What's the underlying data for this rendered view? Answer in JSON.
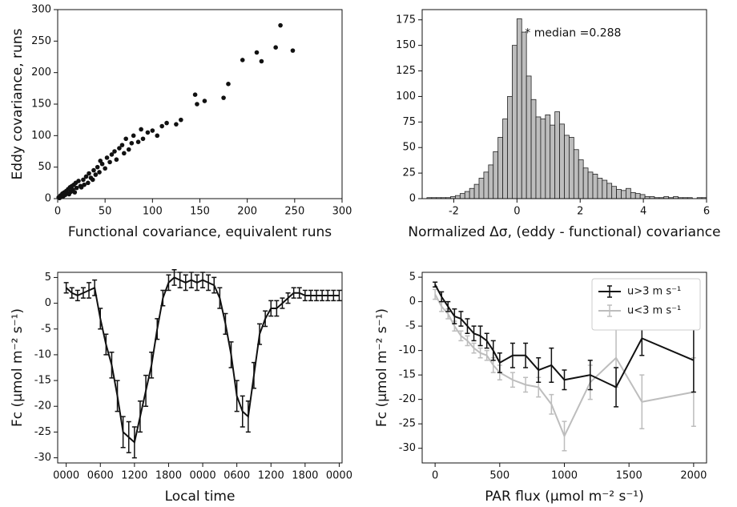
{
  "chart_data": [
    {
      "type": "scatter",
      "xlabel": "Functional covariance, equivalent runs",
      "ylabel": "Eddy covariance, runs",
      "color": "#111111",
      "x": [
        1,
        2,
        3,
        4,
        5,
        6,
        7,
        8,
        9,
        10,
        11,
        12,
        13,
        14,
        15,
        16,
        17,
        18,
        19,
        20,
        22,
        24,
        25,
        27,
        28,
        30,
        32,
        33,
        35,
        37,
        38,
        40,
        42,
        44,
        45,
        47,
        50,
        52,
        55,
        57,
        60,
        62,
        65,
        68,
        70,
        72,
        75,
        78,
        80,
        85,
        88,
        90,
        95,
        100,
        105,
        110,
        115,
        125,
        130,
        145,
        147,
        155,
        175,
        180,
        195,
        210,
        215,
        230,
        235,
        248
      ],
      "values": [
        2,
        1,
        5,
        3,
        8,
        4,
        10,
        6,
        12,
        9,
        15,
        7,
        18,
        11,
        20,
        14,
        22,
        10,
        25,
        17,
        28,
        20,
        18,
        30,
        22,
        35,
        25,
        40,
        33,
        30,
        45,
        38,
        50,
        42,
        60,
        55,
        48,
        65,
        58,
        70,
        75,
        62,
        80,
        85,
        72,
        95,
        78,
        88,
        100,
        90,
        110,
        95,
        105,
        108,
        100,
        115,
        120,
        118,
        125,
        165,
        150,
        155,
        160,
        182,
        220,
        232,
        218,
        240,
        275,
        235
      ],
      "xlim": [
        0,
        300
      ],
      "xticks": [
        0,
        50,
        100,
        150,
        200,
        250,
        300
      ],
      "ylim": [
        0,
        300
      ],
      "yticks": [
        0,
        50,
        100,
        150,
        200,
        250,
        300
      ]
    },
    {
      "type": "histogram",
      "xlabel": "Normalized Δσ,  (eddy - functional) covariance",
      "annotation": "* median =0.288",
      "color": "#bdbdbd",
      "bins": [
        -2.85,
        -2.7,
        -2.55,
        -2.4,
        -2.25,
        -2.1,
        -1.95,
        -1.8,
        -1.65,
        -1.5,
        -1.35,
        -1.2,
        -1.05,
        -0.9,
        -0.75,
        -0.6,
        -0.45,
        -0.3,
        -0.15,
        0,
        0.15,
        0.3,
        0.45,
        0.6,
        0.75,
        0.9,
        1.05,
        1.2,
        1.35,
        1.5,
        1.65,
        1.8,
        1.95,
        2.1,
        2.25,
        2.4,
        2.55,
        2.7,
        2.85,
        3,
        3.15,
        3.3,
        3.45,
        3.6,
        3.75,
        3.9,
        4.05,
        4.2,
        4.35,
        4.5,
        4.65,
        4.8,
        4.95,
        5.1,
        5.25,
        5.4,
        5.55,
        5.7,
        5.85,
        6
      ],
      "values": [
        1,
        1,
        1,
        1,
        1,
        2,
        3,
        5,
        7,
        10,
        14,
        20,
        26,
        33,
        46,
        60,
        78,
        100,
        150,
        176,
        163,
        120,
        97,
        80,
        78,
        82,
        72,
        85,
        73,
        62,
        60,
        48,
        38,
        30,
        26,
        24,
        20,
        18,
        15,
        12,
        9,
        8,
        10,
        6,
        5,
        4,
        2,
        2,
        1,
        1,
        2,
        1,
        2,
        1,
        1,
        1,
        0,
        1,
        1
      ],
      "xlim": [
        -3,
        6
      ],
      "xticks": [
        -2,
        0,
        2,
        4,
        6
      ],
      "ylim": [
        0,
        185
      ],
      "yticks": [
        0,
        25,
        50,
        75,
        100,
        125,
        150,
        175
      ]
    },
    {
      "type": "line",
      "xlabel": "Local time",
      "ylabel": "Fc (μmol m⁻² s⁻¹)",
      "color": "#111111",
      "x": [
        0,
        1,
        2,
        3,
        4,
        5,
        6,
        7,
        8,
        9,
        10,
        11,
        12,
        13,
        14,
        15,
        16,
        17,
        18,
        19,
        20,
        21,
        22,
        23,
        24,
        25,
        26,
        27,
        28,
        29,
        30,
        31,
        32,
        33,
        34,
        35,
        36,
        37,
        38,
        39,
        40,
        41,
        42,
        43,
        44,
        45,
        46,
        47,
        48
      ],
      "values": [
        3,
        2,
        1.5,
        2,
        2.5,
        3,
        -3,
        -8,
        -12,
        -18,
        -25,
        -26,
        -27,
        -22,
        -17,
        -12,
        -5,
        1,
        4,
        5,
        4.5,
        4,
        4.5,
        4,
        4.5,
        4,
        3.5,
        1,
        -4,
        -10,
        -18,
        -21,
        -22,
        -14,
        -6,
        -3,
        -1,
        -1,
        0,
        1,
        2,
        2,
        1.5,
        1.5,
        1.5,
        1.5,
        1.5,
        1.5,
        1.5
      ],
      "errors": [
        1,
        1,
        1,
        1,
        1.5,
        1.5,
        2,
        2,
        2.5,
        3,
        3,
        3,
        3,
        3,
        3,
        2.5,
        2,
        1.5,
        1.5,
        1.5,
        1.5,
        1.5,
        1.5,
        1.5,
        1.5,
        1.5,
        1.5,
        2,
        2,
        2.5,
        3,
        3,
        3,
        2.5,
        2,
        1.5,
        1.5,
        1.5,
        1,
        1,
        1,
        1,
        1,
        1,
        1,
        1,
        1,
        1,
        1
      ],
      "xlim": [
        -1.5,
        48.5
      ],
      "xticks": [
        {
          "value": 0,
          "label": "0000"
        },
        {
          "value": 6,
          "label": "0600"
        },
        {
          "value": 12,
          "label": "1200"
        },
        {
          "value": 18,
          "label": "1800"
        },
        {
          "value": 24,
          "label": "0000"
        },
        {
          "value": 30,
          "label": "0600"
        },
        {
          "value": 36,
          "label": "1200"
        },
        {
          "value": 42,
          "label": "1800"
        },
        {
          "value": 48,
          "label": "0000"
        }
      ],
      "ylim": [
        -31,
        6
      ],
      "yticks": [
        -30,
        -25,
        -20,
        -15,
        -10,
        -5,
        0,
        5
      ]
    },
    {
      "type": "line",
      "xlabel": "PAR flux (μmol m⁻² s⁻¹)",
      "ylabel": "Fc (μmol m⁻² s⁻¹)",
      "legend": "upper right",
      "x": [
        0,
        50,
        100,
        150,
        200,
        250,
        300,
        350,
        400,
        450,
        500,
        600,
        700,
        800,
        900,
        1000,
        1200,
        1400,
        1600,
        2000
      ],
      "series": [
        {
          "name": "u>3 m s⁻¹",
          "color": "#111111",
          "values": [
            3.5,
            1,
            -1,
            -3,
            -3.5,
            -5,
            -6.5,
            -7,
            -8,
            -10,
            -12.5,
            -11,
            -11,
            -14,
            -13,
            -16,
            -15,
            -17.5,
            -7.5,
            -12
          ],
          "errors": [
            0.5,
            1,
            1,
            1.5,
            1.5,
            1.5,
            1.5,
            2,
            1.5,
            2,
            2,
            2.5,
            2.5,
            2.5,
            3.5,
            2,
            3,
            4,
            3.5,
            6.5
          ]
        },
        {
          "name": "u<3 m s⁻¹",
          "color": "#bdbdbd",
          "values": [
            1.5,
            -1,
            -2.5,
            -5,
            -7,
            -8,
            -9.5,
            -10.5,
            -11,
            -13,
            -14.5,
            -16,
            -17,
            -17.5,
            -21,
            -27.5,
            -16.5,
            -11.5,
            -20.5,
            -18.5
          ],
          "errors": [
            1,
            1,
            1,
            1,
            1,
            1,
            1,
            1,
            1,
            1.5,
            1.5,
            1.5,
            1.5,
            2,
            2,
            3,
            3.5,
            6,
            5.5,
            7
          ]
        }
      ],
      "xlim": [
        -100,
        2100
      ],
      "xticks": [
        0,
        500,
        1000,
        1500,
        2000
      ],
      "ylim": [
        -33,
        6
      ],
      "yticks": [
        -30,
        -25,
        -20,
        -15,
        -10,
        -5,
        0,
        5
      ]
    }
  ]
}
